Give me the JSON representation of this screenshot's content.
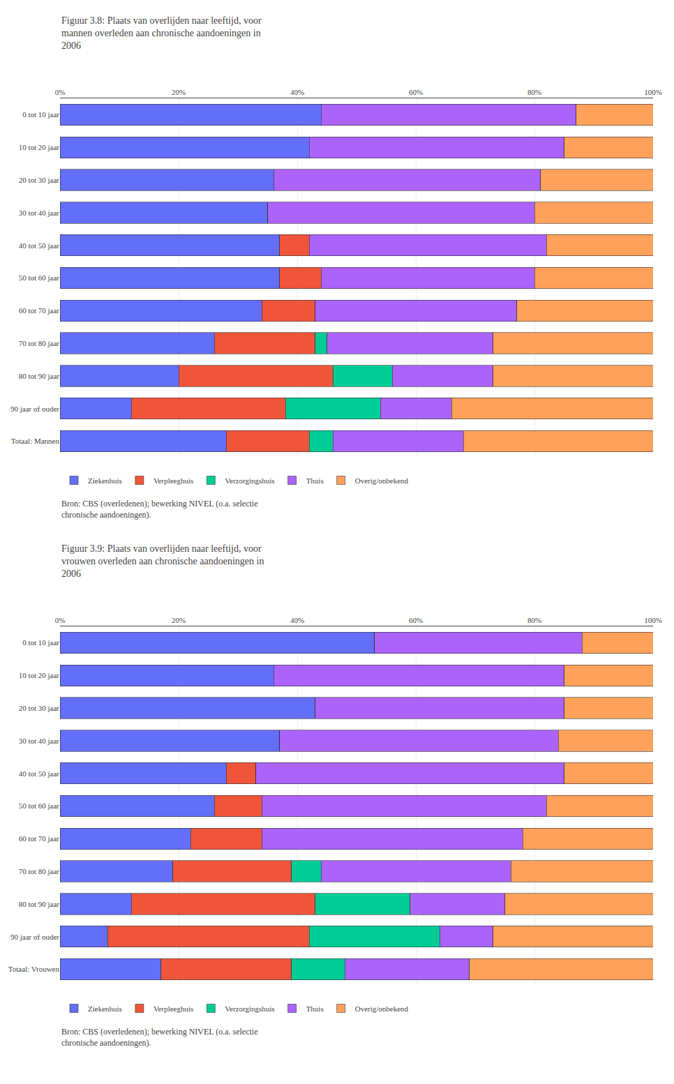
{
  "chart_data": [
    {
      "type": "bar",
      "orientation": "horizontal",
      "stacked": true,
      "title": "Figuur 3.8: Plaats van overlijden naar leeftijd, voor\nmannen overleden aan chronische aandoeningen in\n2006",
      "categories": [
        "0 tot 10 jaar",
        "10 tot 20 jaar",
        "20 tot 30 jaar",
        "30 tot 40 jaar",
        "40 tot 50 jaar",
        "50 tot 60 jaar",
        "60 tot 70 jaar",
        "70 tot 80 jaar",
        "80 tot 90 jaar",
        "90 jaar of ouder",
        "Totaal: Mannen"
      ],
      "series": [
        {
          "name": "Ziekenhuis",
          "values": [
            44,
            42,
            36,
            35,
            37,
            37,
            34,
            26,
            20,
            12,
            28
          ]
        },
        {
          "name": "Verpleeghuis",
          "values": [
            0,
            0,
            0,
            0,
            5,
            7,
            9,
            17,
            26,
            26,
            14
          ]
        },
        {
          "name": "Verzorgingshuis",
          "values": [
            0,
            0,
            0,
            0,
            0,
            0,
            0,
            2,
            10,
            16,
            4
          ]
        },
        {
          "name": "Thuis",
          "values": [
            43,
            43,
            45,
            45,
            40,
            36,
            34,
            28,
            17,
            12,
            22
          ]
        },
        {
          "name": "Overig/onbekend",
          "values": [
            13,
            15,
            19,
            20,
            18,
            20,
            23,
            27,
            27,
            34,
            32
          ]
        }
      ],
      "xlim": [
        0,
        100
      ],
      "xticks": [
        {
          "value": 0,
          "label": "0%"
        },
        {
          "value": 20,
          "label": "20%"
        },
        {
          "value": 40,
          "label": "40%"
        },
        {
          "value": 60,
          "label": "60%"
        },
        {
          "value": 80,
          "label": "80%"
        },
        {
          "value": 100,
          "label": "100%"
        }
      ],
      "grid": true,
      "legend": "bottom",
      "annotations": [
        "Bron: CBS (overledenen); bewerking NIVEL (o.a. selectie\nchronische aandoeningen)."
      ]
    },
    {
      "type": "bar",
      "orientation": "horizontal",
      "stacked": true,
      "title": "Figuur 3.9: Plaats van overlijden naar leeftijd, voor\nvrouwen overleden aan chronische aandoeningen in\n2006",
      "categories": [
        "0 tot 10 jaar",
        "10 tot 20 jaar",
        "20 tot 30 jaar",
        "30 tot 40 jaar",
        "40 tot 50 jaar",
        "50 tot 60 jaar",
        "60 tot 70 jaar",
        "70 tot 80 jaar",
        "80 tot 90 jaar",
        "90 jaar of ouder",
        "Totaal: Vrouwen"
      ],
      "series": [
        {
          "name": "Ziekenhuis",
          "values": [
            53,
            36,
            43,
            37,
            28,
            26,
            22,
            19,
            12,
            8,
            17
          ]
        },
        {
          "name": "Verpleeghuis",
          "values": [
            0,
            0,
            0,
            0,
            5,
            8,
            12,
            20,
            31,
            34,
            22
          ]
        },
        {
          "name": "Verzorgingshuis",
          "values": [
            0,
            0,
            0,
            0,
            0,
            0,
            0,
            5,
            16,
            22,
            9
          ]
        },
        {
          "name": "Thuis",
          "values": [
            35,
            49,
            42,
            47,
            52,
            48,
            44,
            32,
            16,
            9,
            21
          ]
        },
        {
          "name": "Overig/onbekend",
          "values": [
            12,
            15,
            15,
            16,
            15,
            18,
            22,
            24,
            25,
            27,
            31
          ]
        }
      ],
      "xlim": [
        0,
        100
      ],
      "xticks": [
        {
          "value": 0,
          "label": "0%"
        },
        {
          "value": 20,
          "label": "20%"
        },
        {
          "value": 40,
          "label": "40%"
        },
        {
          "value": 60,
          "label": "60%"
        },
        {
          "value": 80,
          "label": "80%"
        },
        {
          "value": 100,
          "label": "100%"
        }
      ],
      "grid": true,
      "legend": "bottom",
      "annotations": [
        "Bron: CBS (overledenen); bewerking NIVEL (o.a. selectie\nchronische aandoeningen)."
      ]
    }
  ]
}
